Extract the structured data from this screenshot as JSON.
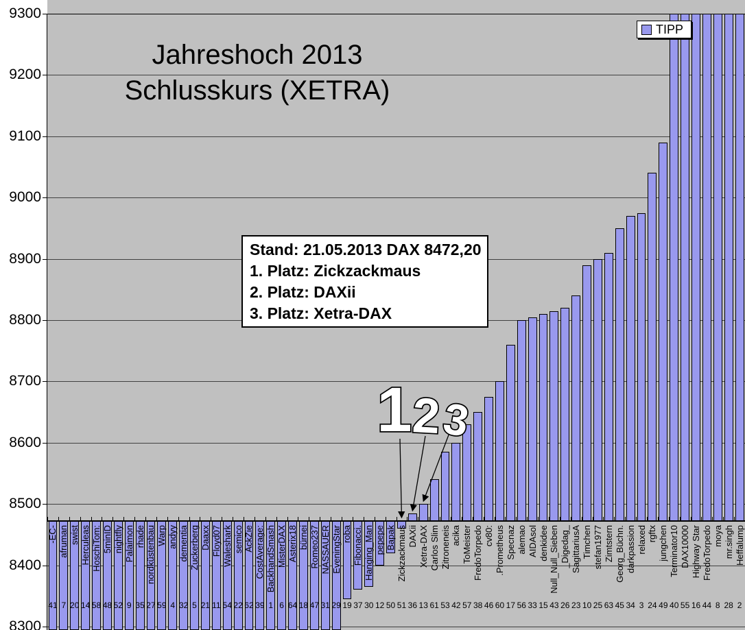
{
  "title": {
    "line1": "Jahreshoch 2013",
    "line2": "Schlusskurs (XETRA)"
  },
  "legend": {
    "label": "TIPP"
  },
  "annotation": {
    "lines": [
      "Stand: 21.05.2013 DAX 8472,20",
      "1. Platz: Zickzackmaus",
      "2. Platz: DAXii",
      "3. Platz: Xetra-DAX"
    ]
  },
  "callouts": [
    {
      "rank": "1",
      "target": "Zickzackmaus"
    },
    {
      "rank": "2",
      "target": "DAXii"
    },
    {
      "rank": "3",
      "target": "Xetra-DAX"
    }
  ],
  "colors": {
    "bar_fill": "#9999EE",
    "bar_border": "#000000",
    "plot_bg": "#C0C0C0",
    "gridline": "#404040",
    "chart_bg": "#FFFFFF"
  },
  "chart_data": {
    "type": "bar",
    "title": "Jahreshoch 2013 Schlusskurs (XETRA)",
    "series_name": "TIPP",
    "ylim": [
      8300,
      9300
    ],
    "yticks": [
      9300,
      9200,
      9100,
      9000,
      8900,
      8800,
      8700,
      8600,
      8500,
      8400,
      8300
    ],
    "axis_crossing": 8472.2,
    "grid": true,
    "legend_position": "top-right",
    "clipping_note": "bars with clip=low run past the 8300 plot bottom (tip already passed); bars with clip=high exceed 9300 and are cut at the plot top",
    "bars": [
      {
        "name": "-EC-",
        "nr": 41,
        "value": null,
        "clip": "low"
      },
      {
        "name": "afruman",
        "nr": 7,
        "value": null,
        "clip": "low"
      },
      {
        "name": "swist",
        "nr": 20,
        "value": null,
        "clip": "low"
      },
      {
        "name": "Herculeas",
        "nr": 14,
        "value": null,
        "clip": "low"
      },
      {
        "name": "HoschiTom:",
        "nr": 58,
        "value": null,
        "clip": "low"
      },
      {
        "name": "5minID",
        "nr": 48,
        "value": null,
        "clip": "low"
      },
      {
        "name": "nightfly",
        "nr": 52,
        "value": null,
        "clip": "low"
      },
      {
        "name": "Palaimon",
        "nr": 9,
        "value": null,
        "clip": "low"
      },
      {
        "name": "rhade",
        "nr": 35,
        "value": null,
        "clip": "low"
      },
      {
        "name": "nordküstenbau",
        "nr": 27,
        "value": null,
        "clip": "low"
      },
      {
        "name": "Warp",
        "nr": 59,
        "value": null,
        "clip": "low"
      },
      {
        "name": "andyy",
        "nr": 4,
        "value": null,
        "clip": "low"
      },
      {
        "name": "dementia",
        "nr": 32,
        "value": null,
        "clip": "low"
      },
      {
        "name": "Zuckerberg",
        "nr": 5,
        "value": null,
        "clip": "low"
      },
      {
        "name": "Daaxx",
        "nr": 21,
        "value": null,
        "clip": "low"
      },
      {
        "name": "Floyd07",
        "nr": 11,
        "value": null,
        "clip": "low"
      },
      {
        "name": "Waleshark",
        "nr": 54,
        "value": null,
        "clip": "low"
      },
      {
        "name": "semico",
        "nr": 22,
        "value": null,
        "clip": "low"
      },
      {
        "name": "AckZie",
        "nr": 62,
        "value": null,
        "clip": "low"
      },
      {
        "name": "CostAverage:",
        "nr": 39,
        "value": null,
        "clip": "low"
      },
      {
        "name": "BackhandSmash",
        "nr": 1,
        "value": null,
        "clip": "low"
      },
      {
        "name": "MisterDAX",
        "nr": 6,
        "value": null,
        "clip": "low"
      },
      {
        "name": "Asterix18",
        "nr": 64,
        "value": null,
        "clip": "low"
      },
      {
        "name": "bürnei",
        "nr": 18,
        "value": null,
        "clip": "low"
      },
      {
        "name": "Romeo237",
        "nr": 47,
        "value": null,
        "clip": "low"
      },
      {
        "name": "NASSAUER",
        "nr": 31,
        "value": null,
        "clip": "low"
      },
      {
        "name": "EveningStar",
        "nr": 29,
        "value": null,
        "clip": "low"
      },
      {
        "name": "roba",
        "nr": 19,
        "value": 8345
      },
      {
        "name": "Fibonacci.",
        "nr": 37,
        "value": 8360
      },
      {
        "name": "Hanging_Man",
        "nr": 30,
        "value": 8365
      },
      {
        "name": "pepepe",
        "nr": 12,
        "value": 8400
      },
      {
        "name": "Bapak",
        "nr": 50,
        "value": 8420
      },
      {
        "name": "Zickzackmaus",
        "nr": 51,
        "value": 8460
      },
      {
        "name": "DAXii",
        "nr": 36,
        "value": 8485
      },
      {
        "name": "Xetra-DAX",
        "nr": 13,
        "value": 8500
      },
      {
        "name": "Carlos Slim",
        "nr": 61,
        "value": 8540
      },
      {
        "name": "Zitroneneis",
        "nr": 53,
        "value": 8585
      },
      {
        "name": "acika",
        "nr": 42,
        "value": 8600
      },
      {
        "name": "ToMeister",
        "nr": 57,
        "value": 8630
      },
      {
        "name": "FredoTorpedo",
        "nr": 38,
        "value": 8650
      },
      {
        "name": "cv80:",
        "nr": 46,
        "value": 8675
      },
      {
        "name": ".Prometheus",
        "nr": 60,
        "value": 8700
      },
      {
        "name": "Specnaz",
        "nr": 17,
        "value": 8760
      },
      {
        "name": "alemao",
        "nr": 56,
        "value": 8800
      },
      {
        "name": "AIDAsol",
        "nr": 33,
        "value": 8805
      },
      {
        "name": "denkidee",
        "nr": 15,
        "value": 8810
      },
      {
        "name": "Null_Null_Sieben",
        "nr": 43,
        "value": 8815
      },
      {
        "name": "_Digedag_",
        "nr": 26,
        "value": 8820
      },
      {
        "name": "SagittariusA",
        "nr": 23,
        "value": 8840
      },
      {
        "name": "Timchen",
        "nr": 10,
        "value": 8890
      },
      {
        "name": "stefan1977",
        "nr": 25,
        "value": 8900
      },
      {
        "name": "Zimtstern",
        "nr": 63,
        "value": 8910
      },
      {
        "name": "Georg_Büchn.",
        "nr": 45,
        "value": 8950
      },
      {
        "name": "darkpassion",
        "nr": 34,
        "value": 8970
      },
      {
        "name": "relaxed",
        "nr": 3,
        "value": 8975
      },
      {
        "name": "rgftx",
        "nr": 24,
        "value": 9040
      },
      {
        "name": "jungchen",
        "nr": 49,
        "value": 9090
      },
      {
        "name": "Terminator10",
        "nr": 40,
        "value": null,
        "clip": "high"
      },
      {
        "name": "DAX10000",
        "nr": 55,
        "value": null,
        "clip": "high"
      },
      {
        "name": "Highway Star",
        "nr": 16,
        "value": null,
        "clip": "high"
      },
      {
        "name": "FredoTorpedo",
        "nr": 44,
        "value": null,
        "clip": "high"
      },
      {
        "name": "moya",
        "nr": 8,
        "value": null,
        "clip": "high"
      },
      {
        "name": "mr.singh",
        "nr": 28,
        "value": null,
        "clip": "high"
      },
      {
        "name": "Heffalump",
        "nr": 2,
        "value": null,
        "clip": "high"
      }
    ]
  }
}
